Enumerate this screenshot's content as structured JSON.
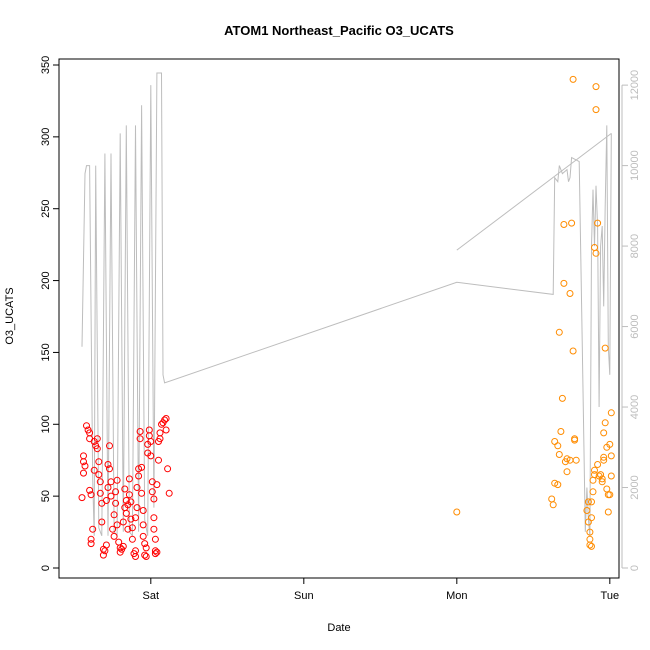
{
  "chart_data": {
    "type": "scatter",
    "title": "ATOM1 Northeast_Pacific O3_UCATS",
    "xlabel": "Date",
    "ylabel": "O3_UCATS",
    "x_unit": "days from plot origin (Sat = 1)",
    "xlim": [
      0.4,
      4.06
    ],
    "ylim": [
      0,
      350
    ],
    "y2lim": [
      0,
      12500
    ],
    "x_ticks": [
      {
        "value": 1,
        "label": "Sat"
      },
      {
        "value": 2,
        "label": "Sun"
      },
      {
        "value": 3,
        "label": "Mon"
      },
      {
        "value": 4,
        "label": "Tue"
      }
    ],
    "y_ticks": [
      0,
      50,
      100,
      150,
      200,
      250,
      300,
      350
    ],
    "y2_ticks": [
      0,
      2000,
      4000,
      6000,
      8000,
      10000,
      12000
    ],
    "grid": false,
    "colors": {
      "series1": "#ff0000",
      "series2": "#ff8c00",
      "altitude": "#bdbdbd"
    },
    "series": [
      {
        "name": "",
        "type": "scatter",
        "axis": "left",
        "color": "#ff0000",
        "points": [
          [
            0.55,
            49
          ],
          [
            0.56,
            66
          ],
          [
            0.56,
            74
          ],
          [
            0.56,
            78
          ],
          [
            0.57,
            71
          ],
          [
            0.58,
            99
          ],
          [
            0.59,
            96
          ],
          [
            0.6,
            94
          ],
          [
            0.6,
            90
          ],
          [
            0.6,
            54
          ],
          [
            0.61,
            20
          ],
          [
            0.61,
            17
          ],
          [
            0.62,
            27
          ],
          [
            0.61,
            51
          ],
          [
            0.63,
            68
          ],
          [
            0.63,
            88
          ],
          [
            0.64,
            85
          ],
          [
            0.65,
            90
          ],
          [
            0.65,
            83
          ],
          [
            0.66,
            65
          ],
          [
            0.66,
            74
          ],
          [
            0.67,
            60
          ],
          [
            0.67,
            52
          ],
          [
            0.68,
            45
          ],
          [
            0.68,
            32
          ],
          [
            0.69,
            13
          ],
          [
            0.69,
            9
          ],
          [
            0.7,
            12
          ],
          [
            0.71,
            16
          ],
          [
            0.71,
            47
          ],
          [
            0.72,
            56
          ],
          [
            0.72,
            72
          ],
          [
            0.73,
            69
          ],
          [
            0.73,
            85
          ],
          [
            0.74,
            60
          ],
          [
            0.74,
            50
          ],
          [
            0.75,
            27
          ],
          [
            0.76,
            22
          ],
          [
            0.76,
            37
          ],
          [
            0.77,
            45
          ],
          [
            0.77,
            53
          ],
          [
            0.78,
            61
          ],
          [
            0.78,
            30
          ],
          [
            0.79,
            18
          ],
          [
            0.8,
            14
          ],
          [
            0.8,
            11
          ],
          [
            0.81,
            13
          ],
          [
            0.82,
            15
          ],
          [
            0.82,
            32
          ],
          [
            0.83,
            42
          ],
          [
            0.83,
            55
          ],
          [
            0.84,
            47
          ],
          [
            0.84,
            38
          ],
          [
            0.85,
            27
          ],
          [
            0.85,
            44
          ],
          [
            0.86,
            62
          ],
          [
            0.86,
            51
          ],
          [
            0.87,
            46
          ],
          [
            0.87,
            34
          ],
          [
            0.88,
            28
          ],
          [
            0.88,
            20
          ],
          [
            0.89,
            10
          ],
          [
            0.9,
            12
          ],
          [
            0.9,
            8
          ],
          [
            0.9,
            35
          ],
          [
            0.91,
            42
          ],
          [
            0.91,
            56
          ],
          [
            0.92,
            69
          ],
          [
            0.92,
            64
          ],
          [
            0.93,
            90
          ],
          [
            0.93,
            95
          ],
          [
            0.94,
            70
          ],
          [
            0.94,
            52
          ],
          [
            0.95,
            40
          ],
          [
            0.95,
            30
          ],
          [
            0.95,
            22
          ],
          [
            0.96,
            17
          ],
          [
            0.96,
            9
          ],
          [
            0.97,
            8
          ],
          [
            0.97,
            14
          ],
          [
            0.98,
            80
          ],
          [
            0.98,
            86
          ],
          [
            0.99,
            92
          ],
          [
            0.99,
            96
          ],
          [
            1.0,
            88
          ],
          [
            1.0,
            78
          ],
          [
            1.01,
            60
          ],
          [
            1.01,
            53
          ],
          [
            1.02,
            48
          ],
          [
            1.02,
            35
          ],
          [
            1.02,
            27
          ],
          [
            1.03,
            20
          ],
          [
            1.03,
            12
          ],
          [
            1.03,
            10
          ],
          [
            1.04,
            11
          ],
          [
            1.04,
            58
          ],
          [
            1.05,
            75
          ],
          [
            1.05,
            88
          ],
          [
            1.06,
            90
          ],
          [
            1.06,
            94
          ],
          [
            1.07,
            100
          ],
          [
            1.08,
            101
          ],
          [
            1.09,
            103
          ],
          [
            1.1,
            104
          ],
          [
            1.1,
            96
          ],
          [
            1.11,
            69
          ],
          [
            1.12,
            52
          ]
        ]
      },
      {
        "name": "",
        "type": "scatter",
        "axis": "left",
        "color": "#ff8c00",
        "points": [
          [
            3.0,
            39
          ],
          [
            3.62,
            48
          ],
          [
            3.63,
            44
          ],
          [
            3.64,
            59
          ],
          [
            3.64,
            88
          ],
          [
            3.66,
            58
          ],
          [
            3.66,
            85
          ],
          [
            3.67,
            164
          ],
          [
            3.67,
            79
          ],
          [
            3.68,
            95
          ],
          [
            3.69,
            118
          ],
          [
            3.7,
            239
          ],
          [
            3.7,
            198
          ],
          [
            3.71,
            74
          ],
          [
            3.72,
            76
          ],
          [
            3.72,
            67
          ],
          [
            3.74,
            191
          ],
          [
            3.74,
            75
          ],
          [
            3.75,
            240
          ],
          [
            3.76,
            340
          ],
          [
            3.76,
            151
          ],
          [
            3.77,
            90
          ],
          [
            3.77,
            89
          ],
          [
            3.78,
            75
          ],
          [
            3.85,
            40
          ],
          [
            3.86,
            46
          ],
          [
            3.86,
            32
          ],
          [
            3.87,
            25
          ],
          [
            3.87,
            20
          ],
          [
            3.87,
            16
          ],
          [
            3.88,
            15
          ],
          [
            3.88,
            35
          ],
          [
            3.88,
            46
          ],
          [
            3.89,
            53
          ],
          [
            3.89,
            61
          ],
          [
            3.9,
            65
          ],
          [
            3.9,
            68
          ],
          [
            3.9,
            223
          ],
          [
            3.91,
            219
          ],
          [
            3.91,
            335
          ],
          [
            3.91,
            319
          ],
          [
            3.92,
            240
          ],
          [
            3.92,
            72
          ],
          [
            3.93,
            64
          ],
          [
            3.94,
            65
          ],
          [
            3.95,
            62
          ],
          [
            3.95,
            60
          ],
          [
            3.96,
            75
          ],
          [
            3.96,
            77
          ],
          [
            3.96,
            94
          ],
          [
            3.97,
            101
          ],
          [
            3.97,
            153
          ],
          [
            3.98,
            84
          ],
          [
            3.98,
            55
          ],
          [
            3.99,
            39
          ],
          [
            3.99,
            51
          ],
          [
            4.0,
            86
          ],
          [
            4.01,
            108
          ],
          [
            4.01,
            78
          ],
          [
            4.01,
            64
          ],
          [
            4.0,
            51
          ]
        ]
      },
      {
        "name": "",
        "type": "line",
        "axis": "right",
        "color": "#bdbdbd",
        "points": [
          [
            0.55,
            5500
          ],
          [
            0.57,
            9800
          ],
          [
            0.58,
            10000
          ],
          [
            0.6,
            10000
          ],
          [
            0.62,
            2200
          ],
          [
            0.63,
            800
          ],
          [
            0.64,
            10000
          ],
          [
            0.66,
            1000
          ],
          [
            0.68,
            800
          ],
          [
            0.7,
            10300
          ],
          [
            0.72,
            800
          ],
          [
            0.74,
            10300
          ],
          [
            0.76,
            900
          ],
          [
            0.78,
            800
          ],
          [
            0.8,
            10800
          ],
          [
            0.82,
            900
          ],
          [
            0.84,
            11000
          ],
          [
            0.86,
            900
          ],
          [
            0.88,
            800
          ],
          [
            0.9,
            11000
          ],
          [
            0.92,
            900
          ],
          [
            0.94,
            11500
          ],
          [
            0.96,
            1200
          ],
          [
            0.98,
            800
          ],
          [
            1.0,
            12000
          ],
          [
            1.02,
            1500
          ],
          [
            1.04,
            12300
          ],
          [
            1.07,
            12300
          ],
          [
            1.08,
            4800
          ],
          [
            1.09,
            4600
          ],
          [
            3.0,
            7100
          ],
          [
            3.63,
            6800
          ],
          [
            3.64,
            9700
          ],
          [
            3.66,
            9600
          ],
          [
            3.67,
            10000
          ],
          [
            3.69,
            9800
          ],
          [
            3.72,
            9900
          ],
          [
            3.73,
            9600
          ],
          [
            3.74,
            9700
          ],
          [
            3.75,
            10200
          ],
          [
            3.8,
            10100
          ],
          [
            3.82,
            5500
          ],
          [
            3.84,
            900
          ],
          [
            3.85,
            2000
          ],
          [
            3.86,
            1200
          ],
          [
            3.87,
            800
          ],
          [
            3.88,
            8000
          ],
          [
            3.89,
            9400
          ],
          [
            3.9,
            8000
          ],
          [
            3.91,
            9500
          ],
          [
            3.92,
            8500
          ],
          [
            3.93,
            4000
          ],
          [
            3.94,
            8000
          ],
          [
            3.95,
            8500
          ],
          [
            3.96,
            6500
          ],
          [
            3.97,
            9000
          ],
          [
            3.98,
            11000
          ],
          [
            3.99,
            5500
          ],
          [
            4.0,
            4800
          ],
          [
            4.01,
            10800
          ],
          [
            3.0,
            7900
          ]
        ]
      }
    ]
  }
}
